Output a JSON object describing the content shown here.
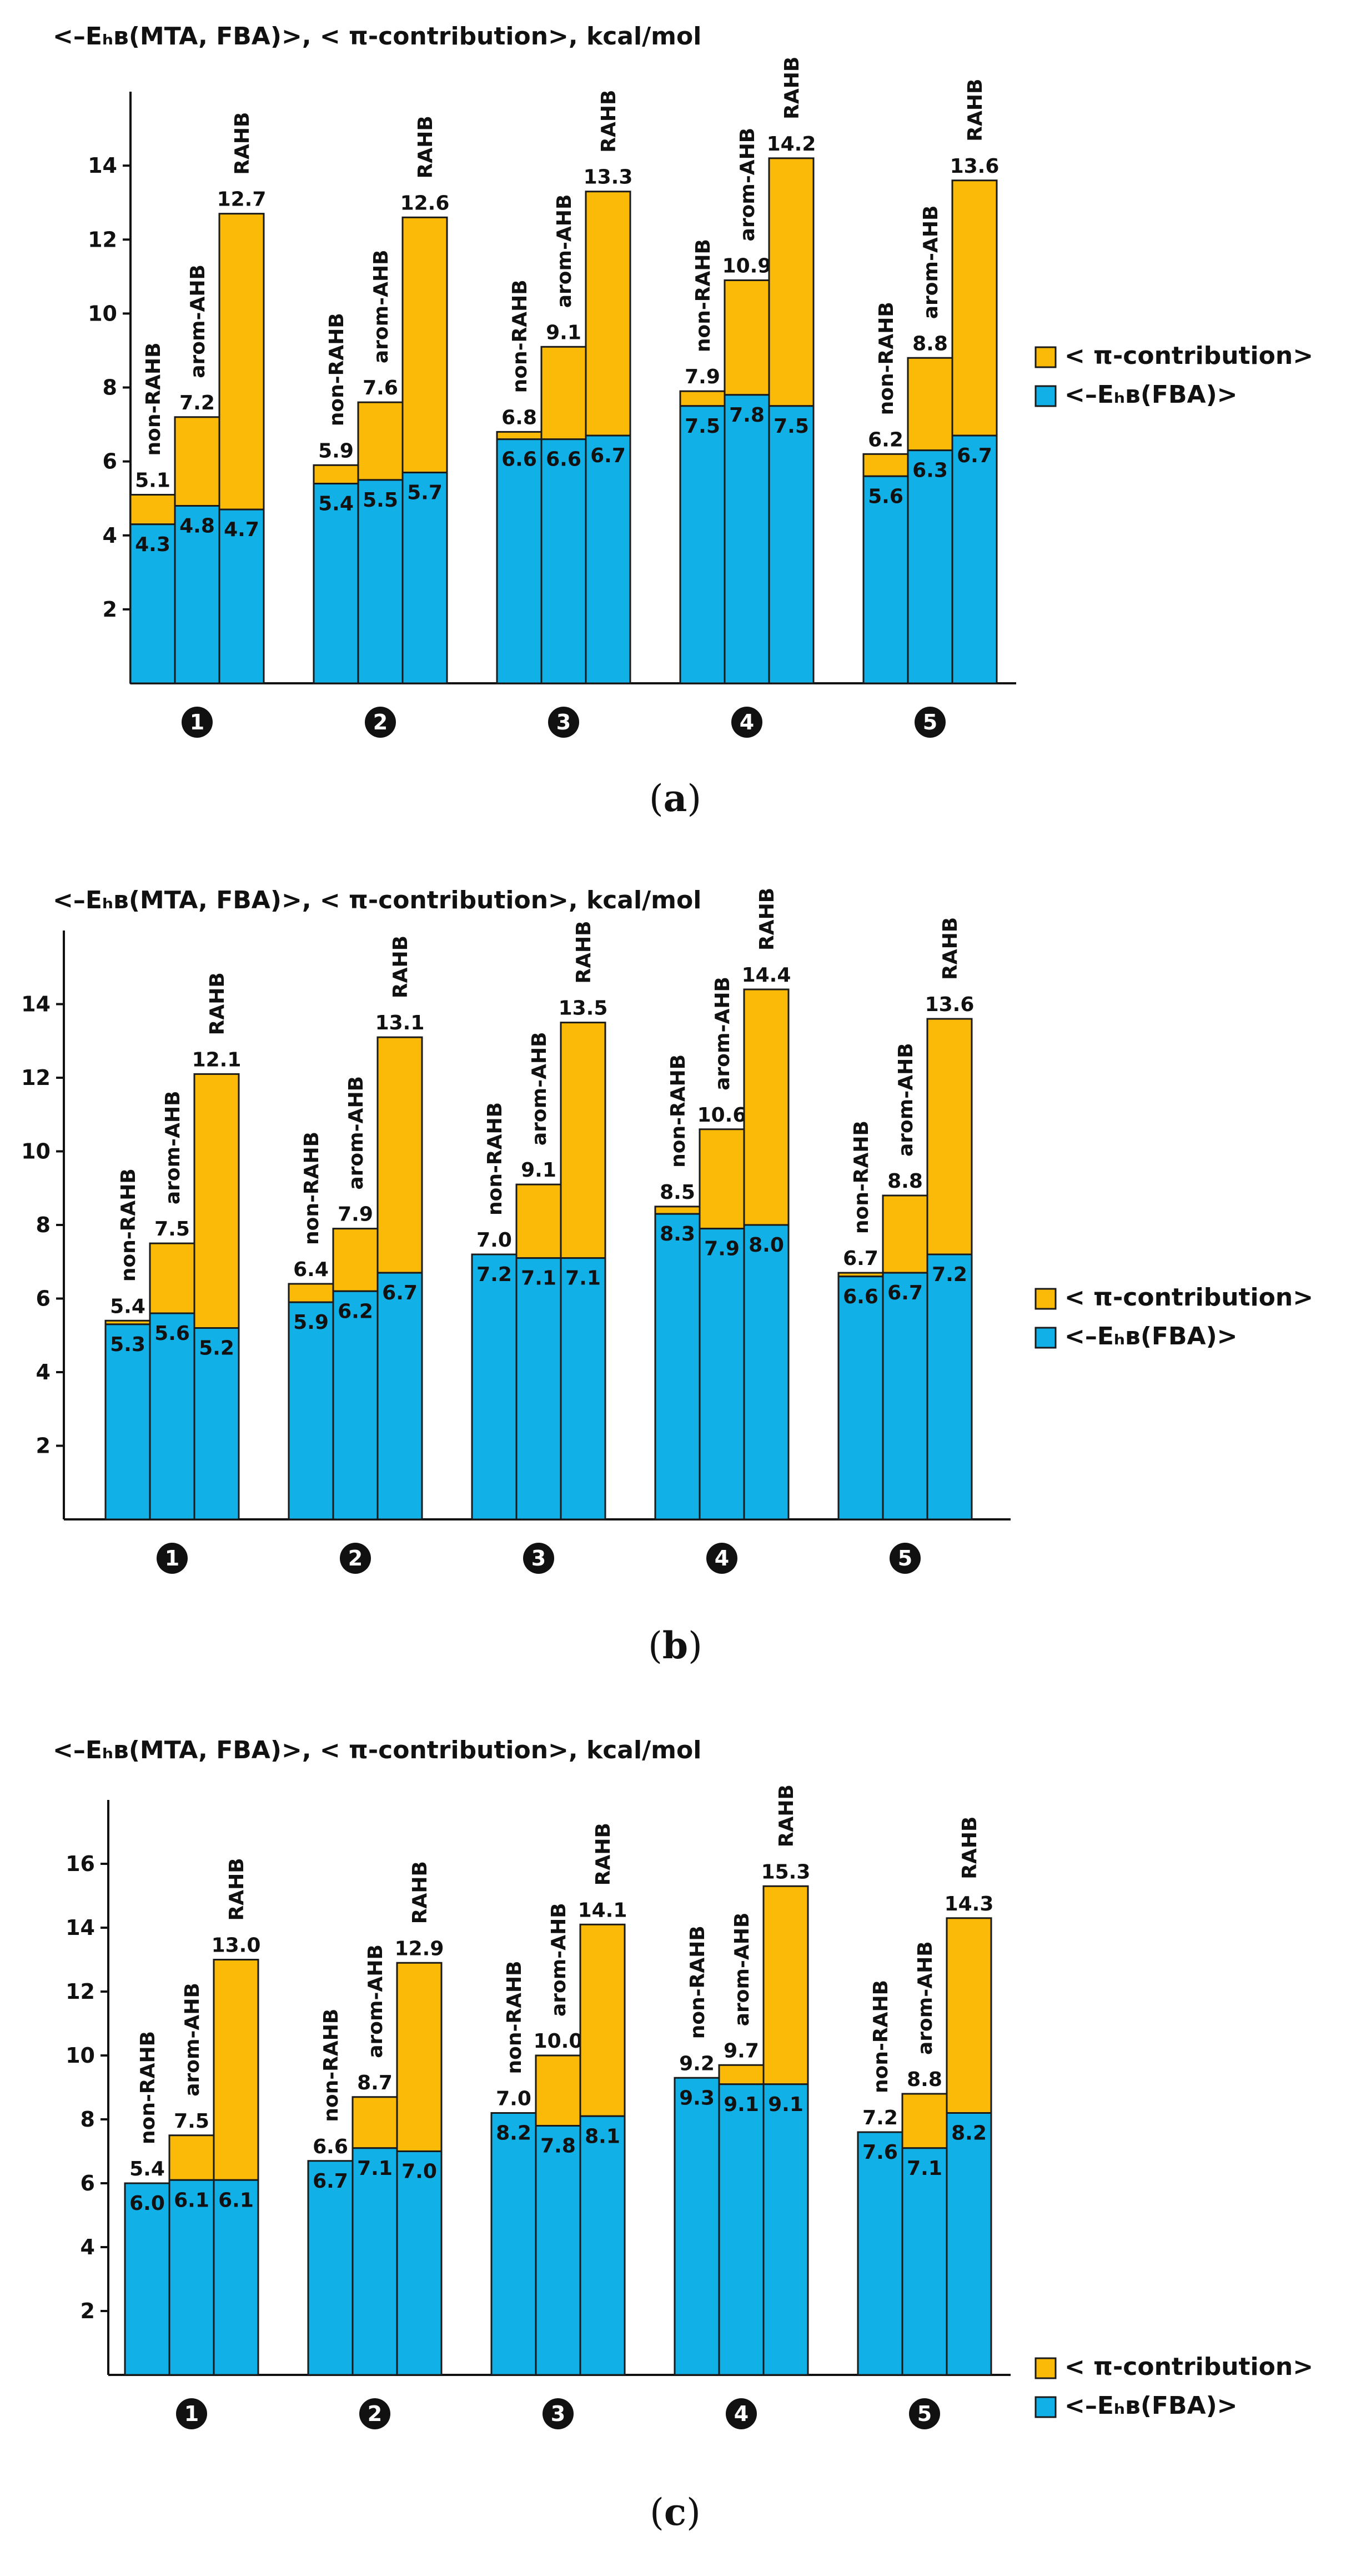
{
  "colors": {
    "base": "#11b1e8",
    "pi": "#fcba08",
    "outline": "#1a1a1a",
    "circle": "#111111"
  },
  "series_labels": [
    "non-RAHB",
    "arom-AHB",
    "RAHB"
  ],
  "legend": {
    "pi_label": "< π-contribution>",
    "base_label": "<–Eₕʙ(FBA)>"
  },
  "chart_data": [
    {
      "type": "bar",
      "panel": "a",
      "title": "<–Eₕʙ(MTA, FBA)>, < π-contribution>, kcal/mol",
      "caption_open": "(",
      "caption_letter": "a",
      "caption_close": ")",
      "categories": [
        "1",
        "2",
        "3",
        "4",
        "5"
      ],
      "series": [
        {
          "name": "non-RAHB",
          "base": [
            4.3,
            5.4,
            6.6,
            7.5,
            5.6
          ],
          "top": [
            5.1,
            5.9,
            6.8,
            7.9,
            6.2
          ]
        },
        {
          "name": "arom-AHB",
          "base": [
            4.8,
            5.5,
            6.6,
            7.8,
            6.3
          ],
          "top": [
            7.2,
            7.6,
            9.1,
            10.9,
            8.8
          ]
        },
        {
          "name": "RAHB",
          "base": [
            4.7,
            5.7,
            6.7,
            7.5,
            6.7
          ],
          "top": [
            12.7,
            12.6,
            13.3,
            14.2,
            13.6
          ]
        }
      ],
      "yticks": [
        2,
        4,
        6,
        8,
        10,
        12,
        14
      ],
      "ylim": [
        0,
        16
      ]
    },
    {
      "type": "bar",
      "panel": "b",
      "title": "<–Eₕʙ(MTA, FBA)>, < π-contribution>, kcal/mol",
      "caption_open": "(",
      "caption_letter": "b",
      "caption_close": ")",
      "categories": [
        "1",
        "2",
        "3",
        "4",
        "5"
      ],
      "series": [
        {
          "name": "non-RAHB",
          "base": [
            5.3,
            5.9,
            7.2,
            8.3,
            6.6
          ],
          "top": [
            5.4,
            6.4,
            7.0,
            8.5,
            6.7
          ]
        },
        {
          "name": "arom-AHB",
          "base": [
            5.6,
            6.2,
            7.1,
            7.9,
            6.7
          ],
          "top": [
            7.5,
            7.9,
            9.1,
            10.6,
            8.8
          ]
        },
        {
          "name": "RAHB",
          "base": [
            5.2,
            6.7,
            7.1,
            8.0,
            7.2
          ],
          "top": [
            12.1,
            13.1,
            13.5,
            14.4,
            13.6
          ]
        }
      ],
      "yticks": [
        2,
        4,
        6,
        8,
        10,
        12,
        14
      ],
      "ylim": [
        0,
        16
      ]
    },
    {
      "type": "bar",
      "panel": "c",
      "title": "<–Eₕʙ(MTA, FBA)>, < π-contribution>, kcal/mol",
      "caption_open": "(",
      "caption_letter": "c",
      "caption_close": ")",
      "categories": [
        "1",
        "2",
        "3",
        "4",
        "5"
      ],
      "series": [
        {
          "name": "non-RAHB",
          "base": [
            6.0,
            6.7,
            8.2,
            9.3,
            7.6
          ],
          "top": [
            5.4,
            6.6,
            7.0,
            9.2,
            7.2
          ]
        },
        {
          "name": "arom-AHB",
          "base": [
            6.1,
            7.1,
            7.8,
            9.1,
            7.1
          ],
          "top": [
            7.5,
            8.7,
            10.0,
            9.7,
            8.8
          ]
        },
        {
          "name": "RAHB",
          "base": [
            6.1,
            7.0,
            8.1,
            9.1,
            8.2
          ],
          "top": [
            13.0,
            12.9,
            14.1,
            15.3,
            14.3
          ]
        }
      ],
      "yticks": [
        2,
        4,
        6,
        8,
        10,
        12,
        14,
        16
      ],
      "ylim": [
        0,
        18
      ]
    }
  ]
}
